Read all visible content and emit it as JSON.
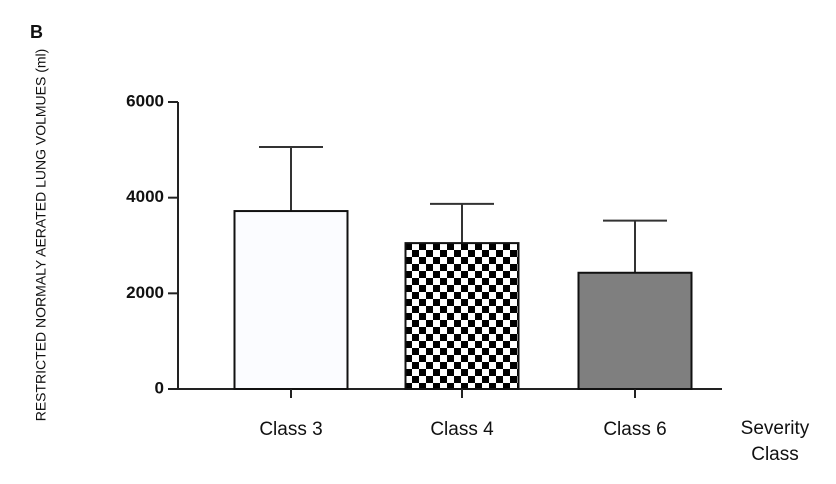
{
  "chart_data": {
    "type": "bar",
    "panel_label": "B",
    "y_label": "RESTRICTED NORMALY AERATED LUNG VOLMUES (ml)",
    "x_label": "Severity Class",
    "categories": [
      "Class 3",
      "Class 4",
      "Class 6"
    ],
    "values": [
      3720,
      3050,
      2430
    ],
    "errors": [
      1340,
      820,
      1090
    ],
    "patterns": [
      "solid",
      "checkerboard",
      "solid"
    ],
    "colors": [
      "#fbfcff",
      "#000000",
      "#7f7f7f"
    ],
    "ylim": [
      0,
      6000
    ],
    "yticks": [
      0,
      2000,
      4000,
      6000
    ],
    "grid": false
  }
}
